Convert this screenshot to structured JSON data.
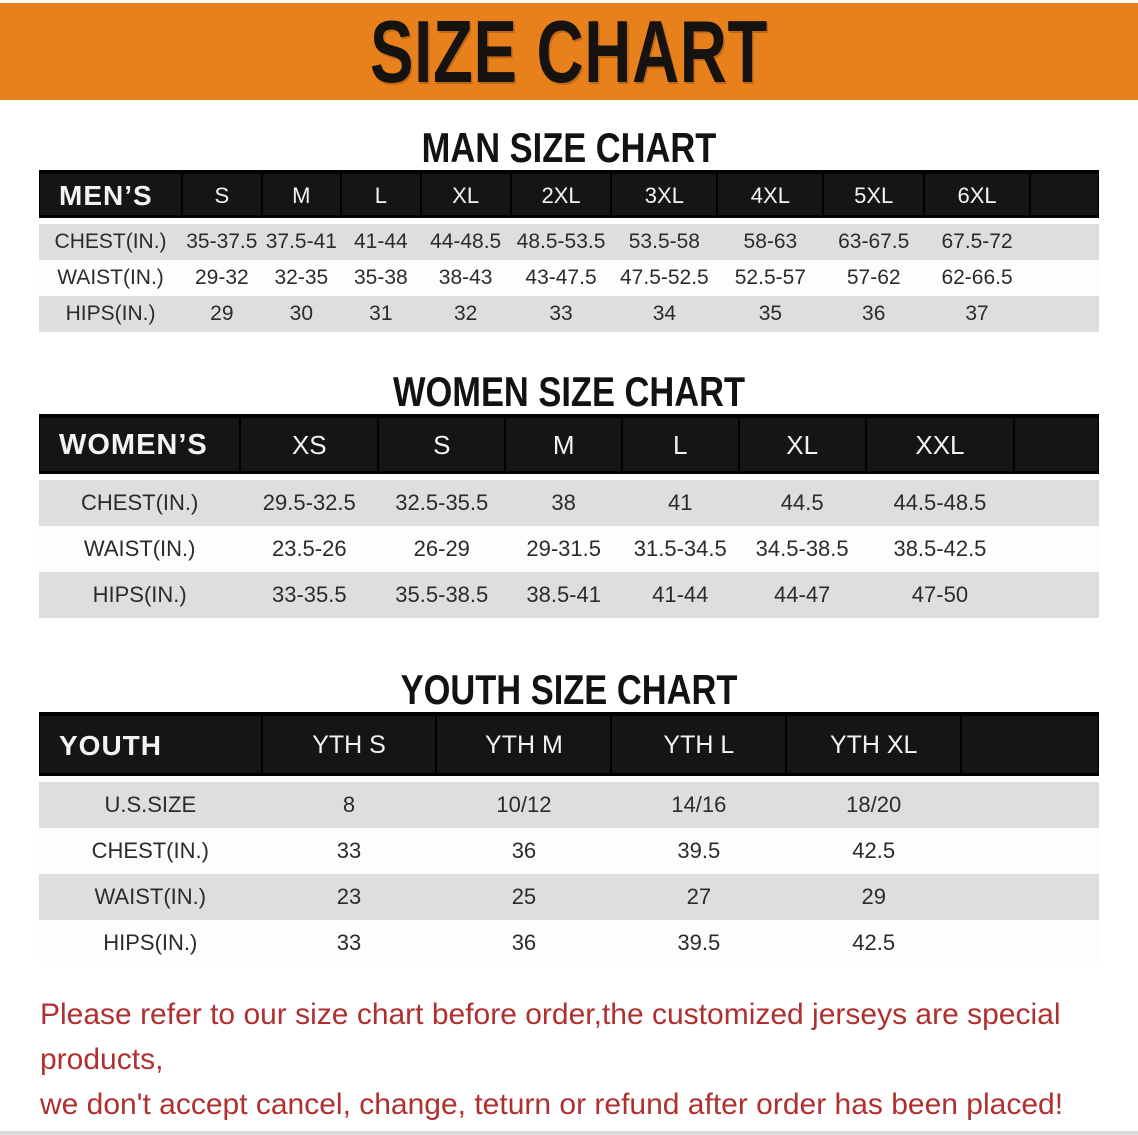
{
  "banner": {
    "title": "SIZE CHART",
    "bg_color": "#E8811B",
    "text_color": "#151210"
  },
  "sections": [
    {
      "heading": "MAN SIZE CHART",
      "table": {
        "header_label": "MEN’S",
        "columns": [
          "S",
          "M",
          "L",
          "XL",
          "2XL",
          "3XL",
          "4XL",
          "5XL",
          "6XL"
        ],
        "rows": [
          {
            "label": "CHEST(IN.)",
            "values": [
              "35-37.5",
              "37.5-41",
              "41-44",
              "44-48.5",
              "48.5-53.5",
              "53.5-58",
              "58-63",
              "63-67.5",
              "67.5-72"
            ]
          },
          {
            "label": "WAIST(IN.)",
            "values": [
              "29-32",
              "32-35",
              "35-38",
              "38-43",
              "43-47.5",
              "47.5-52.5",
              "52.5-57",
              "57-62",
              "62-66.5"
            ]
          },
          {
            "label": "HIPS(IN.)",
            "values": [
              "29",
              "30",
              "31",
              "32",
              "33",
              "34",
              "35",
              "36",
              "37"
            ]
          }
        ]
      }
    },
    {
      "heading": "WOMEN SIZE CHART",
      "table": {
        "header_label": "WOMEN’S",
        "columns": [
          "XS",
          "S",
          "M",
          "L",
          "XL",
          "XXL"
        ],
        "rows": [
          {
            "label": "CHEST(IN.)",
            "values": [
              "29.5-32.5",
              "32.5-35.5",
              "38",
              "41",
              "44.5",
              "44.5-48.5"
            ]
          },
          {
            "label": "WAIST(IN.)",
            "values": [
              "23.5-26",
              "26-29",
              "29-31.5",
              "31.5-34.5",
              "34.5-38.5",
              "38.5-42.5"
            ]
          },
          {
            "label": "HIPS(IN.)",
            "values": [
              "33-35.5",
              "35.5-38.5",
              "38.5-41",
              "41-44",
              "44-47",
              "47-50"
            ]
          }
        ]
      }
    },
    {
      "heading": "YOUTH SIZE CHART",
      "table": {
        "header_label": "YOUTH",
        "columns": [
          "YTH S",
          "YTH M",
          "YTH L",
          "YTH XL"
        ],
        "rows": [
          {
            "label": "U.S.SIZE",
            "values": [
              "8",
              "10/12",
              "14/16",
              "18/20"
            ]
          },
          {
            "label": "CHEST(IN.)",
            "values": [
              "33",
              "36",
              "39.5",
              "42.5"
            ]
          },
          {
            "label": "WAIST(IN.)",
            "values": [
              "23",
              "25",
              "27",
              "29"
            ]
          },
          {
            "label": "HIPS(IN.)",
            "values": [
              "33",
              "36",
              "39.5",
              "42.5"
            ]
          }
        ]
      }
    }
  ],
  "footer": {
    "line1": "Please refer to our size chart before order,the customized jerseys are special products,",
    "line2": "we don't accept cancel, change, teturn or refund after order has been placed!",
    "color": "#b03030"
  },
  "table_style": {
    "header_bg": "#161514",
    "stripe_gray": "#dedee0",
    "stripe_white": "#fdfdfd"
  }
}
